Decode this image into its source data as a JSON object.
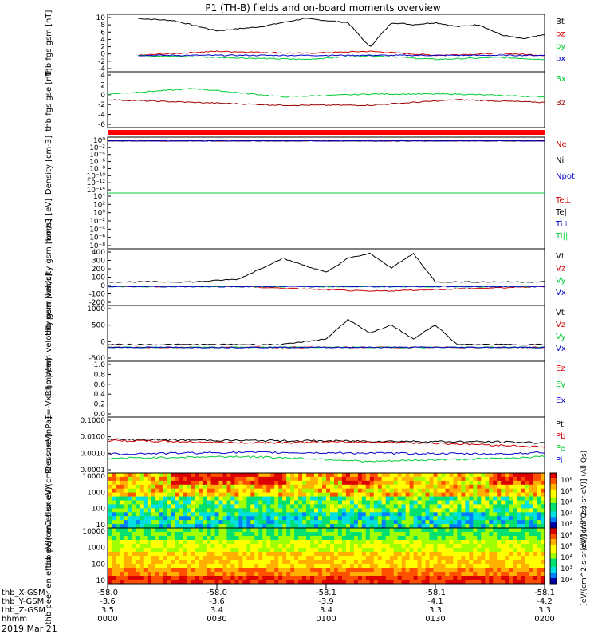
{
  "title": "P1 (TH-B) fields and on-board moments overview",
  "date_label": "2019 Mar 21",
  "colors": {
    "black": "#000000",
    "red": "#cc0000",
    "green": "#00cc33",
    "blue": "#0000cc",
    "darkred": "#990000"
  },
  "ephemeris": {
    "rows": [
      {
        "label": "thb_X-GSM",
        "values": [
          "-58.0",
          "-58.0",
          "-58.1",
          "-58.1",
          "-58.1"
        ]
      },
      {
        "label": "thb_Y-GSM",
        "values": [
          "-3.6",
          "-3.6",
          "-3.9",
          "-4.1",
          "-4.2"
        ]
      },
      {
        "label": "thb_Z-GSM",
        "values": [
          "3.5",
          "3.4",
          "3.4",
          "3.3",
          "3.3"
        ]
      },
      {
        "label": "hhmm",
        "values": [
          "0000",
          "0030",
          "0100",
          "0130",
          "0200"
        ]
      }
    ]
  },
  "chart_data": [
    {
      "type": "line",
      "id": "fgs",
      "ylabel": "thb fgs gsm [nT]",
      "ylim": [
        -4,
        10
      ],
      "yticks": [
        "10",
        "8",
        "6",
        "4",
        "2",
        "0",
        "-2",
        "-4"
      ],
      "series": [
        {
          "name": "Bt",
          "color": "black",
          "x": [
            0.07,
            0.15,
            0.25,
            0.35,
            0.45,
            0.55,
            0.6,
            0.65,
            0.7,
            0.75,
            0.8,
            0.85,
            0.9,
            0.95,
            1.0
          ],
          "values": [
            9,
            8.5,
            6,
            7,
            9,
            8,
            2,
            8,
            7.5,
            8,
            7,
            7.5,
            5,
            4,
            5
          ]
        },
        {
          "name": "bz",
          "color": "red",
          "x": [
            0.07,
            0.25,
            0.45,
            0.6,
            0.75,
            0.9,
            1.0
          ],
          "values": [
            0,
            1,
            0.5,
            1,
            0,
            0.5,
            0
          ]
        },
        {
          "name": "by",
          "color": "green",
          "x": [
            0.07,
            0.25,
            0.45,
            0.6,
            0.75,
            0.9,
            1.0
          ],
          "values": [
            0,
            -0.5,
            -1,
            0,
            -1,
            -0.5,
            -1
          ]
        },
        {
          "name": "bx",
          "color": "blue",
          "x": [
            0.07,
            0.3,
            0.6,
            1.0
          ],
          "values": [
            0,
            0,
            0,
            0
          ]
        }
      ]
    },
    {
      "type": "line",
      "id": "fgs-gse",
      "ylabel": "thb fgs gse [nT]",
      "ylim": [
        -6,
        4
      ],
      "yticks": [
        "4",
        "2",
        "0",
        "-2",
        "-4",
        "-6"
      ],
      "series": [
        {
          "name": "Bx",
          "color": "green",
          "x": [
            0.0,
            0.2,
            0.4,
            0.6,
            0.8,
            1.0
          ],
          "values": [
            0,
            1,
            -0.5,
            0,
            0,
            -0.5
          ]
        },
        {
          "name": "Bz",
          "color": "darkred",
          "x": [
            0.0,
            0.2,
            0.4,
            0.6,
            0.8,
            1.0
          ],
          "values": [
            -1,
            -1.5,
            -2,
            -2,
            -1,
            -1.5
          ]
        }
      ]
    },
    {
      "type": "line",
      "id": "density",
      "ylabel": "Density [cm-3]",
      "log": true,
      "yticks": [
        "10⁰",
        "10⁻²",
        "10⁻⁴",
        "10⁻⁶",
        "10⁻⁸",
        "10⁻¹⁰",
        "10⁻¹²",
        "10⁻¹⁴"
      ],
      "series": [
        {
          "name": "Ne",
          "color": "red",
          "x": [
            0,
            1
          ],
          "values": [
            1,
            1
          ]
        },
        {
          "name": "Ni",
          "color": "black",
          "x": [
            0,
            1
          ],
          "values": [
            1,
            1
          ]
        },
        {
          "name": "Npot",
          "color": "blue",
          "x": [
            0,
            1
          ],
          "values": [
            1,
            1
          ]
        }
      ]
    },
    {
      "type": "line",
      "id": "temperature",
      "ylabel": "mom3 [eV]",
      "log": true,
      "yticks": [
        "10⁴",
        "10²",
        "10⁰",
        "10⁻²",
        "10⁻⁴",
        "10⁻⁶",
        "10⁻⁸"
      ],
      "series": [
        {
          "name": "Te⊥",
          "color": "red",
          "x": [
            0,
            1
          ],
          "values": [
            100,
            100
          ]
        },
        {
          "name": "Te||",
          "color": "black",
          "x": [
            0,
            1
          ],
          "values": [
            100,
            100
          ]
        },
        {
          "name": "Ti⊥",
          "color": "blue",
          "x": [
            0,
            1
          ],
          "values": [
            1000,
            1000
          ]
        },
        {
          "name": "Ti||",
          "color": "green",
          "x": [
            0,
            1
          ],
          "values": [
            1000,
            1000
          ]
        }
      ]
    },
    {
      "type": "line",
      "id": "peim-velocity",
      "ylabel": "thb peim velocity gsm [km/s]",
      "ylim": [
        -200,
        400
      ],
      "yticks": [
        "400",
        "300",
        "200",
        "100",
        "0",
        "-100",
        "-200"
      ],
      "series": [
        {
          "name": "Vt",
          "color": "black",
          "x": [
            0,
            0.2,
            0.3,
            0.4,
            0.5,
            0.55,
            0.6,
            0.65,
            0.7,
            0.75,
            0.8,
            0.9,
            1.0
          ],
          "values": [
            50,
            50,
            80,
            300,
            150,
            300,
            350,
            200,
            350,
            50,
            50,
            50,
            50
          ]
        },
        {
          "name": "Vz",
          "color": "red",
          "x": [
            0,
            0.3,
            0.6,
            1.0
          ],
          "values": [
            0,
            0,
            -50,
            0
          ]
        },
        {
          "name": "Vy",
          "color": "green",
          "x": [
            0,
            0.3,
            0.6,
            1.0
          ],
          "values": [
            0,
            0,
            0,
            0
          ]
        },
        {
          "name": "Vx",
          "color": "blue",
          "x": [
            0,
            0.3,
            0.6,
            1.0
          ],
          "values": [
            0,
            0,
            0,
            0
          ]
        }
      ]
    },
    {
      "type": "line",
      "id": "peem-velocity",
      "ylabel": "thb peem velocity gsm [km/s]",
      "ylim": [
        -500,
        1500
      ],
      "yticks": [
        "1000",
        "500",
        "0",
        "-500"
      ],
      "series": [
        {
          "name": "Vt",
          "color": "black",
          "x": [
            0,
            0.4,
            0.5,
            0.55,
            0.6,
            0.65,
            0.7,
            0.75,
            0.8,
            1.0
          ],
          "values": [
            100,
            100,
            300,
            1000,
            500,
            800,
            300,
            800,
            100,
            100
          ]
        },
        {
          "name": "Vz",
          "color": "red",
          "x": [
            0,
            1
          ],
          "values": [
            0,
            0
          ]
        },
        {
          "name": "Vy",
          "color": "green",
          "x": [
            0,
            1
          ],
          "values": [
            0,
            0
          ]
        },
        {
          "name": "Vx",
          "color": "blue",
          "x": [
            0,
            1
          ],
          "values": [
            0,
            0
          ]
        }
      ]
    },
    {
      "type": "line",
      "id": "e-field",
      "ylabel": "E=-VxB [mV/m]",
      "ylim": [
        0,
        1
      ],
      "yticks": [
        "1.0",
        "0.8",
        "0.6",
        "0.4",
        "0.2",
        "0.0"
      ],
      "series": [
        {
          "name": "Ez",
          "color": "red",
          "x": [],
          "values": []
        },
        {
          "name": "Ey",
          "color": "green",
          "x": [],
          "values": []
        },
        {
          "name": "Ex",
          "color": "blue",
          "x": [],
          "values": []
        }
      ]
    },
    {
      "type": "line",
      "id": "pressure",
      "ylabel": "Pressure [nPa]",
      "log": true,
      "yticks": [
        "0.1000",
        "0.0100",
        "0.0010",
        "0.0001"
      ],
      "series": [
        {
          "name": "Pt",
          "color": "black",
          "x": [
            0,
            0.3,
            0.6,
            0.9,
            1.0
          ],
          "values": [
            0.1,
            0.08,
            0.07,
            0.06,
            0.05
          ]
        },
        {
          "name": "Pb",
          "color": "red",
          "x": [
            0,
            0.3,
            0.6,
            0.9,
            1.0
          ],
          "values": [
            0.08,
            0.05,
            0.06,
            0.03,
            0.02
          ]
        },
        {
          "name": "Pe",
          "color": "green",
          "x": [
            0,
            0.3,
            0.6,
            0.9,
            1.0
          ],
          "values": [
            0.002,
            0.003,
            0.001,
            0.002,
            0.003
          ]
        },
        {
          "name": "Pi",
          "color": "blue",
          "x": [
            0,
            0.3,
            0.6,
            0.9,
            1.0
          ],
          "values": [
            0.005,
            0.007,
            0.006,
            0.005,
            0.007
          ]
        }
      ]
    },
    {
      "type": "heatmap",
      "id": "peir",
      "ylabel": "thb peir en eflux eV/(cm2-s-sr-eV)",
      "yticks": [
        "10000",
        "1000",
        "100",
        "10"
      ],
      "colorbar_ticks": [
        "10⁶",
        "10⁵",
        "10⁴",
        "10³",
        "10²"
      ],
      "colorbar_label": "[eV/(cm^2-s-sr-eV)] (All Qs)"
    },
    {
      "type": "heatmap",
      "id": "peer",
      "ylabel": "thb peer en eflux eV/(cm2-s-sr-eV)",
      "yticks": [
        "10000",
        "1000",
        "100",
        "10"
      ],
      "colorbar_ticks": [
        "10⁶",
        "10⁵",
        "10⁴",
        "10³",
        "10²"
      ],
      "colorbar_label": "[eV/(cm^2-s-sr-eV)] (All Qs)"
    }
  ]
}
